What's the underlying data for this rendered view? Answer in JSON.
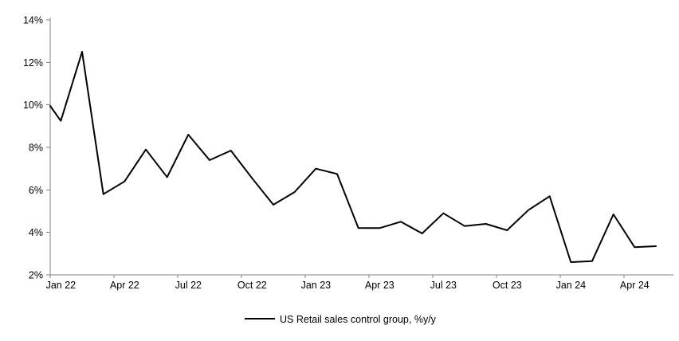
{
  "chart_data": {
    "type": "line",
    "title": "",
    "legend": "US Retail sales control group, %y/y",
    "legend_position": "bottom-center",
    "grid": false,
    "ylim": [
      2,
      14
    ],
    "y_tick_labels": [
      "2%",
      "4%",
      "6%",
      "8%",
      "10%",
      "12%",
      "14%"
    ],
    "y_tick_values": [
      2,
      4,
      6,
      8,
      10,
      12,
      14
    ],
    "x_tick_labels": [
      "Jan 22",
      "Apr 22",
      "Jul 22",
      "Oct 22",
      "Jan 23",
      "Apr 23",
      "Jul 23",
      "Oct 23",
      "Jan 24",
      "Apr 24"
    ],
    "categories": [
      "Jan 22",
      "Feb 22",
      "Mar 22",
      "Apr 22",
      "May 22",
      "Jun 22",
      "Jul 22",
      "Aug 22",
      "Sep 22",
      "Oct 22",
      "Nov 22",
      "Dec 22",
      "Jan 23",
      "Feb 23",
      "Mar 23",
      "Apr 23",
      "May 23",
      "Jun 23",
      "Jul 23",
      "Aug 23",
      "Sep 23",
      "Oct 23",
      "Nov 23",
      "Dec 23",
      "Jan 24",
      "Feb 24",
      "Mar 24",
      "Apr 24",
      "May 24"
    ],
    "series": [
      {
        "name": "US Retail sales control group, %y/y",
        "axis_entry_value": 9.95,
        "values": [
          9.25,
          12.5,
          5.8,
          6.4,
          7.9,
          6.6,
          8.6,
          7.4,
          7.85,
          6.55,
          5.3,
          5.9,
          7.0,
          6.75,
          4.2,
          4.2,
          4.5,
          3.95,
          4.9,
          4.3,
          4.4,
          4.1,
          5.05,
          5.7,
          2.6,
          2.65,
          4.85,
          3.3,
          3.35
        ]
      }
    ],
    "colors": {
      "line": "#000000",
      "axis": "#808080",
      "text": "#000000",
      "background": "#ffffff"
    }
  }
}
